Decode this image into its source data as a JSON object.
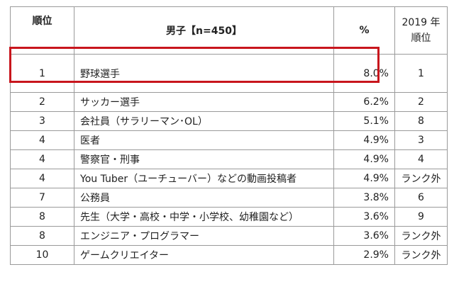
{
  "table": {
    "headers": {
      "rank": "順位",
      "name": "男子【n=450】",
      "pct": "%",
      "year_line1": "2019 年",
      "year_line2": "順位"
    },
    "rows": [
      {
        "rank": "1",
        "name": "野球選手",
        "pct": "8.0%",
        "prev": "1"
      },
      {
        "rank": "2",
        "name": "サッカー選手",
        "pct": "6.2%",
        "prev": "2"
      },
      {
        "rank": "3",
        "name": "会社員（サラリーマン･OL）",
        "pct": "5.1%",
        "prev": "8"
      },
      {
        "rank": "4",
        "name": "医者",
        "pct": "4.9%",
        "prev": "3"
      },
      {
        "rank": "4",
        "name": "警察官・刑事",
        "pct": "4.9%",
        "prev": "4"
      },
      {
        "rank": "4",
        "name": "You Tuber（ユーチューバー）などの動画投稿者",
        "pct": "4.9%",
        "prev": "ランク外"
      },
      {
        "rank": "7",
        "name": "公務員",
        "pct": "3.8%",
        "prev": "6"
      },
      {
        "rank": "8",
        "name": "先生（大学・高校・中学・小学校、幼稚園など）",
        "pct": "3.6%",
        "prev": "9"
      },
      {
        "rank": "8",
        "name": "エンジニア・プログラマー",
        "pct": "3.6%",
        "prev": "ランク外"
      },
      {
        "rank": "10",
        "name": "ゲームクリエイター",
        "pct": "2.9%",
        "prev": "ランク外"
      }
    ]
  },
  "highlight_color": "#c8161d"
}
